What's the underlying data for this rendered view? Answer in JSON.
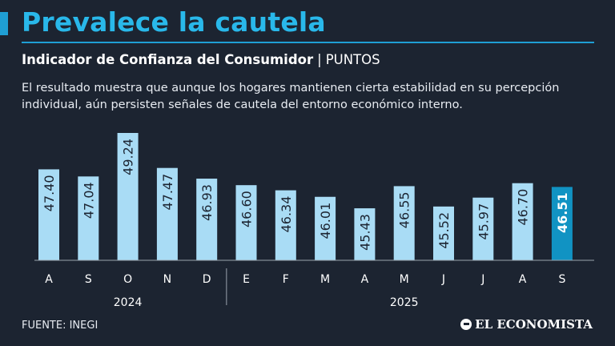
{
  "headline": "Prevalece la cautela",
  "subtitle": {
    "bold": "Indicador de Confianza del Consumidor",
    "separator": "|",
    "unit": "PUNTOS"
  },
  "description": "El resultado muestra que aunque los hogares mantienen cierta estabilidad en su percepción individual, aún persisten señales de cautela del entorno económico interno.",
  "source": "FUENTE: INEGI",
  "brand": "EL ECONOMISTA",
  "colors": {
    "background": "#1c2431",
    "accent": "#29b8ea",
    "bar": "#a9dcf5",
    "bar_highlight": "#1193c3"
  },
  "chart_data": {
    "type": "bar",
    "categories": [
      "A",
      "S",
      "O",
      "N",
      "D",
      "E",
      "F",
      "M",
      "A",
      "M",
      "J",
      "J",
      "A",
      "S"
    ],
    "values": [
      47.4,
      47.04,
      49.24,
      47.47,
      46.93,
      46.6,
      46.34,
      46.01,
      45.43,
      46.55,
      45.52,
      45.97,
      46.7,
      46.51
    ],
    "labels": [
      "47.40",
      "47.04",
      "49.24",
      "47.47",
      "46.93",
      "46.60",
      "46.34",
      "46.01",
      "45.43",
      "46.55",
      "45.52",
      "45.97",
      "46.70",
      "46.51"
    ],
    "highlight_index": 13,
    "year_groups": [
      {
        "label": "2024",
        "start": 0,
        "end": 4
      },
      {
        "label": "2025",
        "start": 5,
        "end": 13
      }
    ],
    "ylim": [
      42.8,
      49.24
    ],
    "title": "Indicador de Confianza del Consumidor",
    "ylabel": "PUNTOS",
    "xlabel": ""
  }
}
